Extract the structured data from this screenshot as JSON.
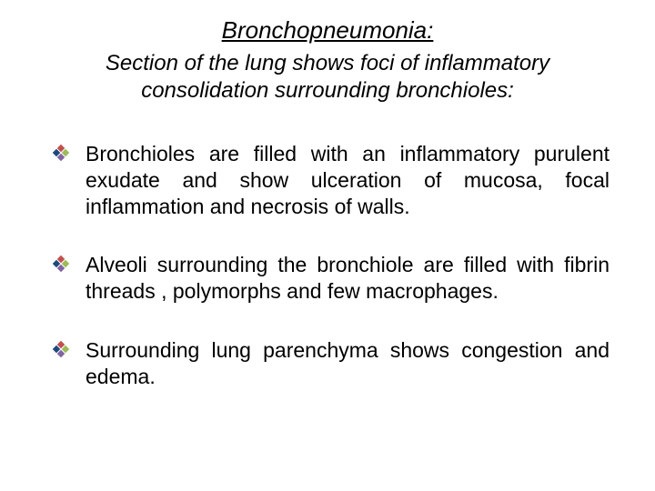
{
  "title": "Bronchopneumonia:",
  "subtitle": "Section of the lung shows foci of inflammatory consolidation surrounding bronchioles:",
  "bullets": [
    "Bronchioles are filled with an inflammatory purulent exudate and show ulceration of mucosa, focal inflammation and necrosis of walls.",
    "Alveoli surrounding the bronchiole are filled with fibrin threads , polymorphs and few macrophages.",
    "Surrounding lung parenchyma shows congestion and edema."
  ],
  "style": {
    "background_color": "#ffffff",
    "text_color": "#000000",
    "title_fontsize": 26,
    "subtitle_fontsize": 24,
    "body_fontsize": 23,
    "title_style": "italic underline",
    "subtitle_style": "italic",
    "bullet_icon": "four-diamond",
    "bullet_icon_colors": {
      "top": "#c0504d",
      "right": "#9bbb59",
      "bottom": "#8064a2",
      "left": "#1f497d"
    }
  }
}
